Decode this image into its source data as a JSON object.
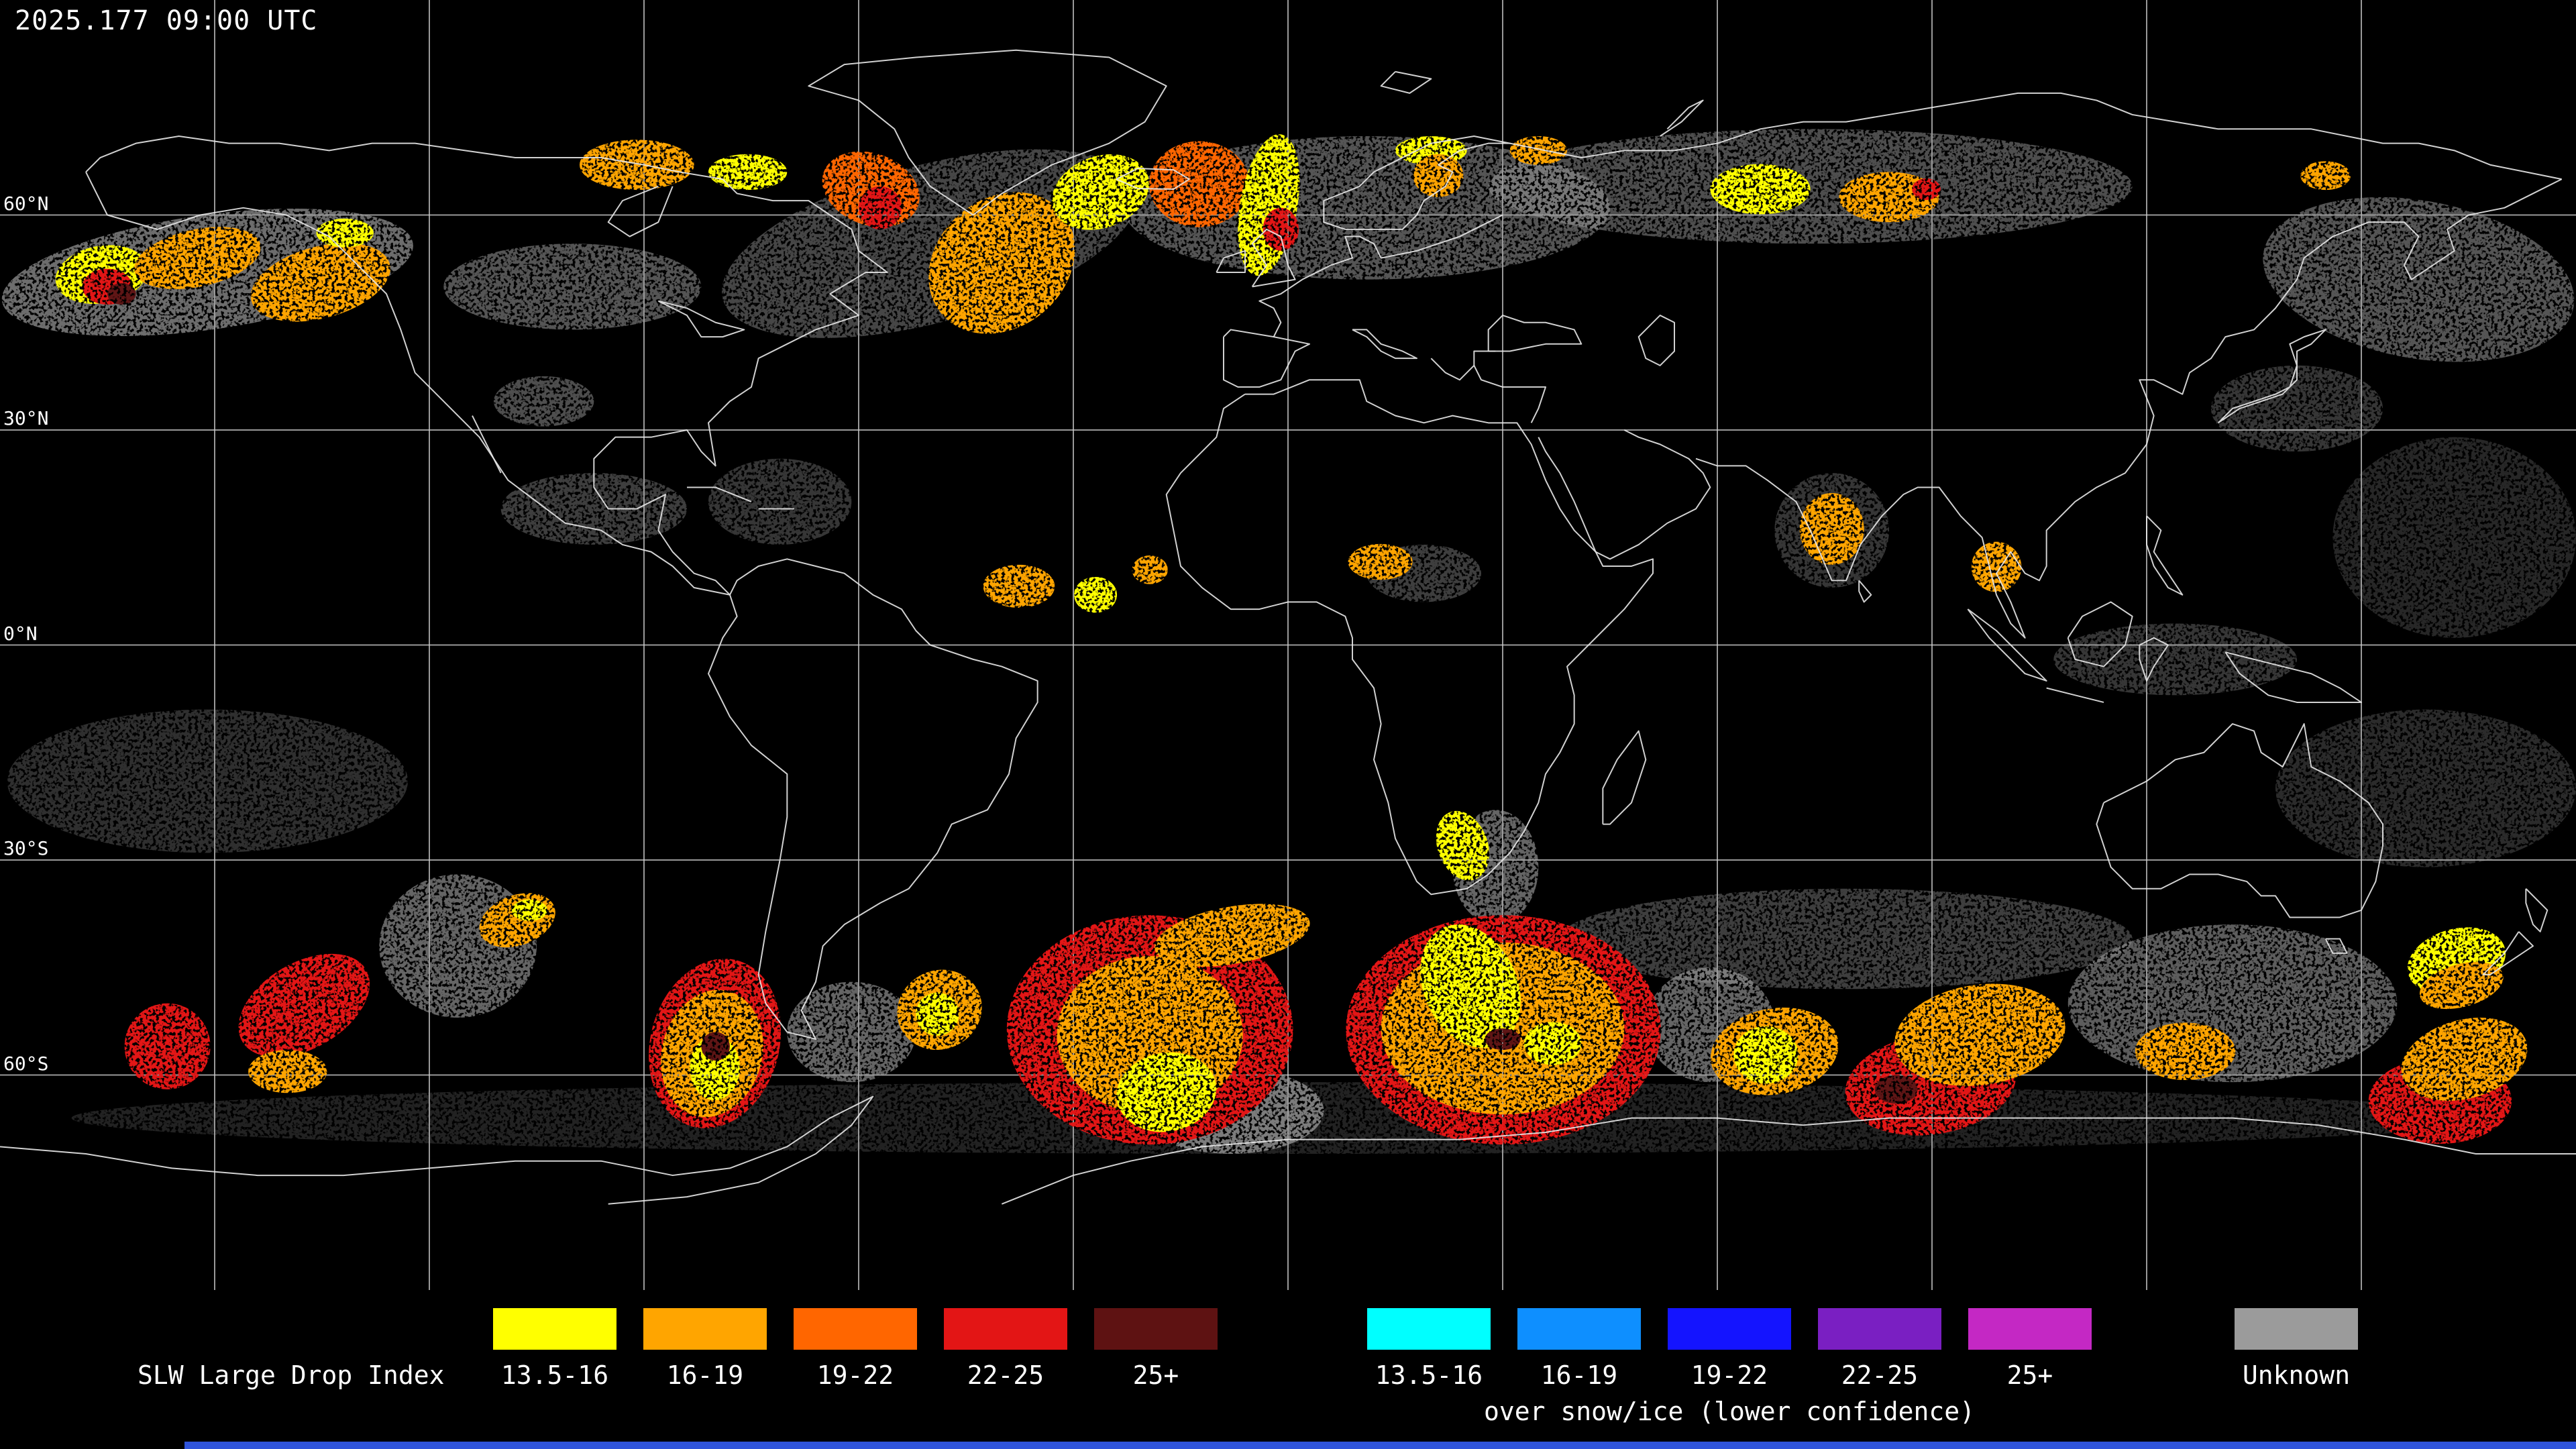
{
  "header": {
    "timestamp": "2025.177 09:00 UTC"
  },
  "map": {
    "background": "#000000",
    "coastline_color": "#e8e8e8",
    "grid": {
      "color": "#cccccc",
      "lon_step_deg": 30,
      "lat_label_lines": [
        60,
        30,
        0,
        -30,
        -60
      ]
    },
    "latitude_labels": [
      {
        "text": "60°N",
        "lat": 60
      },
      {
        "text": "30°N",
        "lat": 30
      },
      {
        "text": "0°N",
        "lat": 0
      },
      {
        "text": "30°S",
        "lat": -30
      },
      {
        "text": "60°S",
        "lat": -60
      }
    ],
    "data_overlay": {
      "palette": {
        "y": "#FFFF00",
        "o": "#FFA500",
        "d": "#FF6600",
        "r": "#E31515",
        "m": "#5E1212",
        "g": "#9B9B9B"
      },
      "blobs": [
        [
          "g",
          -151,
          52,
          29,
          8,
          0.7,
          -8
        ],
        [
          "g",
          -100,
          50,
          18,
          6,
          0.55,
          0
        ],
        [
          "g",
          -50,
          56,
          30,
          11,
          0.45,
          -15
        ],
        [
          "g",
          11,
          61,
          34,
          10,
          0.55,
          0
        ],
        [
          "g",
          73,
          64,
          45,
          8,
          0.5,
          0
        ],
        [
          "g",
          158,
          51,
          22,
          11,
          0.55,
          10
        ],
        [
          "g",
          -104,
          34,
          7,
          3.5,
          0.5,
          0
        ],
        [
          "g",
          -97,
          19,
          13,
          5,
          0.4,
          0
        ],
        [
          "g",
          -71,
          20,
          10,
          6,
          0.35,
          0
        ],
        [
          "g",
          19,
          10,
          8,
          4,
          0.4,
          0
        ],
        [
          "g",
          124,
          -2,
          17,
          5,
          0.35,
          0
        ],
        [
          "g",
          163,
          15,
          17,
          14,
          0.25,
          0
        ],
        [
          "g",
          -151,
          -19,
          28,
          10,
          0.3,
          0
        ],
        [
          "g",
          -116,
          -42,
          11,
          10,
          0.65,
          0
        ],
        [
          "g",
          -61,
          -54,
          9,
          7,
          0.65,
          0
        ],
        [
          "g",
          -8,
          -65,
          13,
          6,
          0.75,
          0
        ],
        [
          "g",
          29,
          -31,
          6,
          8,
          0.65,
          0
        ],
        [
          "g",
          59,
          -53,
          9,
          8,
          0.65,
          0
        ],
        [
          "g",
          78,
          -41,
          40,
          7,
          0.4,
          0
        ],
        [
          "g",
          132,
          -50,
          23,
          11,
          0.6,
          0
        ],
        [
          "g",
          159,
          -20,
          21,
          11,
          0.28,
          0
        ],
        [
          "g",
          0,
          -66,
          170,
          5,
          0.22,
          0
        ],
        [
          "g",
          141,
          33,
          12,
          6,
          0.35,
          0
        ],
        [
          "g",
          76,
          16,
          8,
          8,
          0.35,
          0
        ],
        [
          "y",
          -165.8,
          51.7,
          6.5,
          4,
          1,
          -10
        ],
        [
          "o",
          -152.4,
          54,
          9,
          4,
          1,
          -12
        ],
        [
          "r",
          -165,
          50,
          3.5,
          2.5,
          1,
          0
        ],
        [
          "o",
          -135.2,
          50.6,
          10,
          5,
          1,
          -15
        ],
        [
          "y",
          -131.8,
          57.5,
          4,
          2,
          1,
          0
        ],
        [
          "o",
          -91,
          67,
          8,
          3.5,
          1,
          0
        ],
        [
          "y",
          -75.5,
          66,
          5.5,
          2.5,
          1,
          0
        ],
        [
          "d",
          -58.3,
          63.6,
          7,
          5,
          1,
          20
        ],
        [
          "r",
          -57,
          61,
          3,
          3,
          1,
          0
        ],
        [
          "o",
          -40,
          53.3,
          11,
          9,
          1,
          -40
        ],
        [
          "y",
          -26.2,
          63.2,
          7,
          5,
          1,
          -20
        ],
        [
          "d",
          -12.4,
          64.3,
          7,
          6,
          1,
          0
        ],
        [
          "y",
          -2.7,
          61.4,
          4,
          10,
          1,
          10
        ],
        [
          "r",
          -1,
          58,
          2.5,
          3,
          1,
          0
        ],
        [
          "y",
          20,
          69,
          5,
          2,
          1,
          0
        ],
        [
          "o",
          35,
          69,
          4,
          2,
          1,
          0
        ],
        [
          "o",
          21,
          65.5,
          3.5,
          3,
          1,
          0
        ],
        [
          "y",
          66,
          63.6,
          7,
          3.5,
          1,
          0
        ],
        [
          "o",
          84,
          62.5,
          7,
          3.5,
          1,
          0
        ],
        [
          "r",
          89.2,
          63.6,
          2,
          1.5,
          1,
          0
        ],
        [
          "o",
          145,
          65.5,
          3.5,
          2,
          1,
          0
        ],
        [
          "o",
          -37.6,
          8.2,
          5,
          3,
          1,
          0
        ],
        [
          "y",
          -26.9,
          7,
          3,
          2.5,
          1,
          0
        ],
        [
          "o",
          -19.3,
          10.5,
          2.5,
          2,
          1,
          0
        ],
        [
          "o",
          12.9,
          11.6,
          4.5,
          2.5,
          1,
          0
        ],
        [
          "o",
          76,
          16.2,
          4.5,
          5,
          1,
          0
        ],
        [
          "o",
          99,
          10.9,
          3.5,
          3.5,
          1,
          0
        ],
        [
          "r",
          -137.5,
          -50.3,
          10,
          6,
          1,
          -30
        ],
        [
          "r",
          -156.6,
          -56,
          6,
          6,
          1,
          0
        ],
        [
          "o",
          -139.8,
          -59.5,
          5.5,
          3,
          1,
          0
        ],
        [
          "o",
          -107.7,
          -38.4,
          5.5,
          3.5,
          1,
          -20
        ],
        [
          "y",
          -106,
          -37,
          2.5,
          1.5,
          1,
          0
        ],
        [
          "r",
          -80.1,
          -55.6,
          9,
          12,
          1,
          15
        ],
        [
          "o",
          -80.5,
          -57,
          7,
          9,
          1,
          15
        ],
        [
          "y",
          -80.1,
          -59,
          3.5,
          4.5,
          1,
          0
        ],
        [
          "o",
          -48.7,
          -50.9,
          6,
          5.5,
          1,
          -25
        ],
        [
          "y",
          -49,
          -51.5,
          3,
          3,
          1,
          0
        ],
        [
          "r",
          -19.3,
          -53.7,
          20,
          16,
          1,
          0
        ],
        [
          "o",
          -19.3,
          -54.4,
          13,
          11,
          1,
          0
        ],
        [
          "y",
          -17,
          -62.4,
          7,
          5.5,
          1,
          -10
        ],
        [
          "o",
          -7.8,
          -40.5,
          11,
          4,
          1,
          -10
        ],
        [
          "y",
          24.4,
          -28,
          3.5,
          5,
          1,
          -20
        ],
        [
          "r",
          30.1,
          -53.7,
          22,
          16,
          1,
          0
        ],
        [
          "o",
          30,
          -53.5,
          17,
          12,
          1,
          0
        ],
        [
          "y",
          25.5,
          -47.6,
          6.5,
          9,
          1,
          -25
        ],
        [
          "y",
          37,
          -55.6,
          4,
          3,
          1,
          0
        ],
        [
          "o",
          68,
          -56.7,
          9,
          6,
          1,
          -10
        ],
        [
          "y",
          66.8,
          -57.2,
          4.5,
          4,
          1,
          0
        ],
        [
          "r",
          89.8,
          -61.3,
          12,
          7,
          1,
          -8
        ],
        [
          "o",
          96.7,
          -54.4,
          12,
          7,
          1,
          -8
        ],
        [
          "o",
          125.4,
          -56.7,
          7,
          4,
          1,
          0
        ],
        [
          "r",
          161,
          -63.6,
          10,
          6,
          1,
          0
        ],
        [
          "o",
          164.4,
          -57.8,
          9,
          5.5,
          1,
          -15
        ],
        [
          "y",
          163.3,
          -44.1,
          7,
          4.5,
          1,
          -15
        ],
        [
          "o",
          164,
          -47.5,
          6,
          3,
          1,
          -15
        ],
        [
          "m",
          85,
          -62,
          3,
          2,
          1,
          0
        ],
        [
          "m",
          -163,
          49,
          2,
          1.5,
          1,
          0
        ],
        [
          "m",
          -80,
          -56,
          2,
          2,
          1,
          0
        ],
        [
          "m",
          30,
          -55,
          2.5,
          1.5,
          1,
          0
        ]
      ]
    }
  },
  "legend": {
    "title": "SLW Large Drop Index",
    "bins": [
      {
        "label": "13.5-16",
        "color": "#FFFF00"
      },
      {
        "label": "16-19",
        "color": "#FFA500"
      },
      {
        "label": "19-22",
        "color": "#FF6600"
      },
      {
        "label": "22-25",
        "color": "#E31515"
      },
      {
        "label": "25+",
        "color": "#5E1212"
      }
    ],
    "snow_ice_bins": [
      {
        "label": "13.5-16",
        "color": "#00FFFF"
      },
      {
        "label": "16-19",
        "color": "#0E8FFF"
      },
      {
        "label": "19-22",
        "color": "#1414FF"
      },
      {
        "label": "22-25",
        "color": "#7A1FC2"
      },
      {
        "label": "25+",
        "color": "#C428C4"
      }
    ],
    "snow_ice_note": "over snow/ice (lower confidence)",
    "unknown": {
      "label": "Unknown",
      "color": "#9B9B9B"
    }
  },
  "bottom_bar": {
    "color": "#2F54DB"
  }
}
